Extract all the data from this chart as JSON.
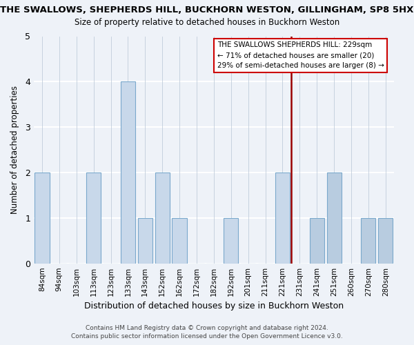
{
  "title": "THE SWALLOWS, SHEPHERDS HILL, BUCKHORN WESTON, GILLINGHAM, SP8 5HX",
  "subtitle": "Size of property relative to detached houses in Buckhorn Weston",
  "xlabel": "Distribution of detached houses by size in Buckhorn Weston",
  "ylabel": "Number of detached properties",
  "categories": [
    "84sqm",
    "94sqm",
    "103sqm",
    "113sqm",
    "123sqm",
    "133sqm",
    "143sqm",
    "152sqm",
    "162sqm",
    "172sqm",
    "182sqm",
    "192sqm",
    "201sqm",
    "211sqm",
    "221sqm",
    "231sqm",
    "241sqm",
    "251sqm",
    "260sqm",
    "270sqm",
    "280sqm"
  ],
  "values": [
    2,
    0,
    0,
    2,
    0,
    4,
    1,
    2,
    1,
    0,
    0,
    1,
    0,
    0,
    2,
    0,
    1,
    2,
    0,
    1,
    1
  ],
  "bar_color_left": "#c8d8ea",
  "bar_color_right": "#b8cce0",
  "bar_edge_color": "#7aa8cc",
  "ylim": [
    0,
    5
  ],
  "yticks": [
    0,
    1,
    2,
    3,
    4,
    5
  ],
  "subject_index": 15,
  "subject_line_color": "#990000",
  "annotation_title": "THE SWALLOWS SHEPHERDS HILL: 229sqm",
  "annotation_line1": "← 71% of detached houses are smaller (20)",
  "annotation_line2": "29% of semi-detached houses are larger (8) →",
  "footer_line1": "Contains HM Land Registry data © Crown copyright and database right 2024.",
  "footer_line2": "Contains public sector information licensed under the Open Government Licence v3.0.",
  "background_color": "#eef2f8",
  "plot_bg_color": "#eef2f8",
  "grid_color": "#ffffff",
  "bar_grid_color": "#c0ccdb"
}
